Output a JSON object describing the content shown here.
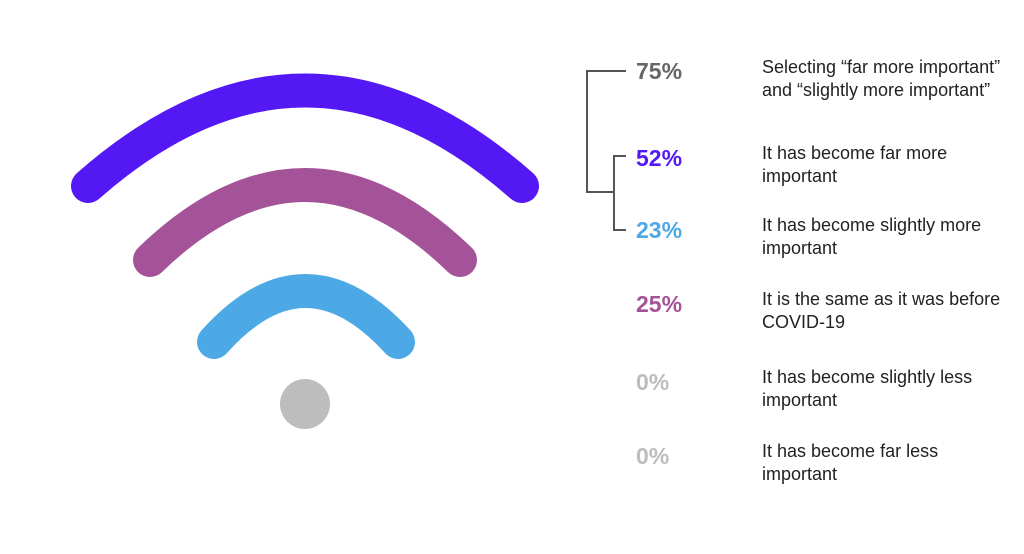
{
  "chart_data": {
    "type": "table",
    "rows": [
      {
        "value": "75%",
        "label": "Selecting “far more important” and “slightly more important”",
        "color": "#666666"
      },
      {
        "value": "52%",
        "label": "It has become far more important",
        "color": "#5418F5"
      },
      {
        "value": "23%",
        "label": "It has become slightly more important",
        "color": "#4DA9E6"
      },
      {
        "value": "25%",
        "label": "It is the same as it was before COVID-19",
        "color": "#A45398"
      },
      {
        "value": "0%",
        "label": "It has become slightly less important",
        "color": "#BDBDBD"
      },
      {
        "value": "0%",
        "label": "It has become far less important",
        "color": "#BDBDBD"
      }
    ]
  },
  "colors": {
    "outer_arc": "#5418F5",
    "middle_arc": "#A45398",
    "inner_arc": "#4DA9E6",
    "dot": "#BDBDBD",
    "bracket": "#555555"
  },
  "icons": {
    "graphic": "wifi-icon"
  }
}
